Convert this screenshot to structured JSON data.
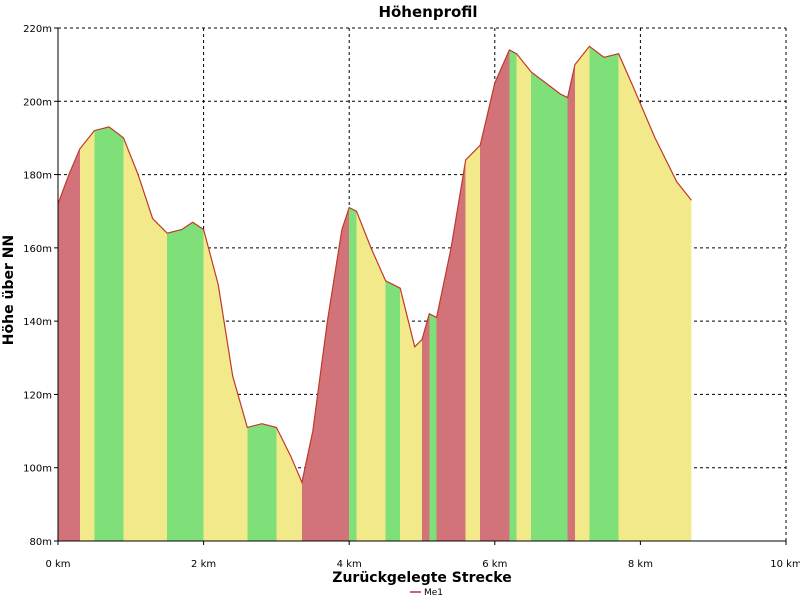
{
  "chart_data": {
    "type": "area",
    "title": "Höhenprofil",
    "xlabel": "Zurückgelegte Strecke",
    "ylabel": "Höhe über NN",
    "xlim": [
      0,
      10
    ],
    "ylim": [
      80,
      220
    ],
    "x_ticks": [
      0,
      2,
      4,
      6,
      8,
      10
    ],
    "x_tick_labels": [
      "0 km",
      "2 km",
      "4 km",
      "6 km",
      "8 km",
      "10 km"
    ],
    "y_ticks": [
      80,
      100,
      120,
      140,
      160,
      180,
      200,
      220
    ],
    "y_tick_labels": [
      "80m",
      "100m",
      "120m",
      "140m",
      "160m",
      "180m",
      "200m",
      "220m"
    ],
    "grid": true,
    "legend": {
      "placement": "bottom-center",
      "entries": [
        "Me1"
      ]
    },
    "colors": {
      "line": "#c0392b",
      "steep": "#d2737a",
      "moderate": "#f2ea8a",
      "flat": "#7fe07a",
      "grid": "#000000"
    },
    "series": [
      {
        "name": "Me1",
        "x": [
          0,
          0.15,
          0.3,
          0.5,
          0.7,
          0.9,
          1.1,
          1.3,
          1.5,
          1.7,
          1.85,
          2.0,
          2.2,
          2.4,
          2.6,
          2.8,
          3.0,
          3.2,
          3.35,
          3.5,
          3.7,
          3.9,
          4.0,
          4.1,
          4.3,
          4.5,
          4.7,
          4.9,
          5.0,
          5.1,
          5.2,
          5.4,
          5.5,
          5.6,
          5.8,
          6.0,
          6.2,
          6.3,
          6.5,
          6.7,
          6.9,
          7.0,
          7.1,
          7.3,
          7.5,
          7.7,
          7.9,
          8.2,
          8.5,
          8.7
        ],
        "y": [
          172,
          180,
          187,
          192,
          193,
          190,
          180,
          168,
          164,
          165,
          167,
          165,
          150,
          125,
          111,
          112,
          111,
          103,
          96,
          110,
          140,
          165,
          171,
          170,
          160,
          151,
          149,
          133,
          135,
          142,
          141,
          160,
          172,
          184,
          188,
          205,
          214,
          213,
          208,
          205,
          202,
          201,
          210,
          215,
          212,
          213,
          204,
          190,
          178,
          173
        ]
      }
    ]
  }
}
